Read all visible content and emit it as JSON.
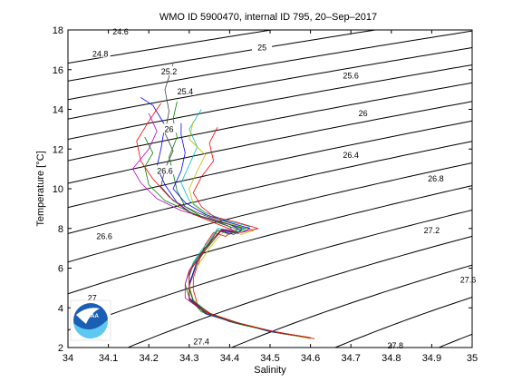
{
  "chart_data": {
    "type": "line",
    "title": "WMO ID 5900470, internal ID 795, 20–Sep–2017",
    "xlabel": "Salinity",
    "ylabel": "Temperature [°C]",
    "xlim": [
      34,
      35
    ],
    "ylim": [
      2,
      18
    ],
    "xticks": [
      "34",
      "34.1",
      "34.2",
      "34.3",
      "34.4",
      "34.5",
      "34.6",
      "34.7",
      "34.8",
      "34.9",
      "35"
    ],
    "yticks": [
      "2",
      "4",
      "6",
      "8",
      "10",
      "12",
      "14",
      "16",
      "18"
    ],
    "grid": false,
    "density_contours": {
      "levels": [
        24.6,
        24.8,
        25,
        25.2,
        25.4,
        25.6,
        25.8,
        26,
        26.2,
        26.4,
        26.6,
        26.8,
        27,
        27.2,
        27.4,
        27.6,
        27.8
      ],
      "labels": [
        {
          "text": "24.6",
          "s": 34.13,
          "t": 17.9
        },
        {
          "text": "24.8",
          "s": 34.08,
          "t": 16.8
        },
        {
          "text": "25",
          "s": 34.48,
          "t": 17.1
        },
        {
          "text": "25.2",
          "s": 34.25,
          "t": 15.9
        },
        {
          "text": "25.4",
          "s": 34.29,
          "t": 14.9
        },
        {
          "text": "25.6",
          "s": 34.7,
          "t": 15.7
        },
        {
          "text": "26",
          "s": 34.73,
          "t": 13.8
        },
        {
          "text": "26",
          "s": 34.25,
          "t": 13.0
        },
        {
          "text": "26.4",
          "s": 34.7,
          "t": 11.7
        },
        {
          "text": "26.6",
          "s": 34.24,
          "t": 10.9
        },
        {
          "text": "26.8",
          "s": 34.91,
          "t": 10.5
        },
        {
          "text": "26.6",
          "s": 34.09,
          "t": 7.6
        },
        {
          "text": "27.2",
          "s": 34.9,
          "t": 7.9
        },
        {
          "text": "27.6",
          "s": 34.99,
          "t": 5.4
        },
        {
          "text": "27",
          "s": 34.06,
          "t": 4.5
        },
        {
          "text": "27.4",
          "s": 34.33,
          "t": 2.3
        },
        {
          "text": "27.8",
          "s": 34.81,
          "t": 2.1
        }
      ]
    },
    "series": [
      {
        "color": "#0000ff",
        "values": [
          [
            34.6,
            2.45
          ],
          [
            34.52,
            2.75
          ],
          [
            34.42,
            3.2
          ],
          [
            34.34,
            3.7
          ],
          [
            34.31,
            4.3
          ],
          [
            34.3,
            5.0
          ],
          [
            34.3,
            5.6
          ],
          [
            34.31,
            6.2
          ],
          [
            34.33,
            6.8
          ],
          [
            34.35,
            7.3
          ],
          [
            34.37,
            7.9
          ],
          [
            34.41,
            7.7
          ],
          [
            34.43,
            7.9
          ],
          [
            34.4,
            8.2
          ],
          [
            34.36,
            8.4
          ],
          [
            34.31,
            8.7
          ],
          [
            34.27,
            9.3
          ],
          [
            34.24,
            10.2
          ],
          [
            34.22,
            11.1
          ],
          [
            34.23,
            12.0
          ],
          [
            34.24,
            13.2
          ],
          [
            34.21,
            14.2
          ],
          [
            34.18,
            14.6
          ]
        ]
      },
      {
        "color": "#008000",
        "values": [
          [
            34.59,
            2.5
          ],
          [
            34.5,
            2.8
          ],
          [
            34.41,
            3.3
          ],
          [
            34.33,
            3.8
          ],
          [
            34.3,
            4.5
          ],
          [
            34.29,
            5.2
          ],
          [
            34.3,
            5.8
          ],
          [
            34.32,
            6.4
          ],
          [
            34.34,
            6.9
          ],
          [
            34.36,
            7.5
          ],
          [
            34.38,
            7.9
          ],
          [
            34.42,
            7.8
          ],
          [
            34.44,
            8.0
          ],
          [
            34.38,
            8.3
          ],
          [
            34.33,
            8.6
          ],
          [
            34.29,
            9.1
          ],
          [
            34.27,
            9.9
          ],
          [
            34.26,
            10.8
          ],
          [
            34.25,
            11.6
          ],
          [
            34.27,
            12.6
          ],
          [
            34.26,
            13.5
          ],
          [
            34.27,
            14.4
          ]
        ]
      },
      {
        "color": "#ff0000",
        "values": [
          [
            34.61,
            2.45
          ],
          [
            34.53,
            2.7
          ],
          [
            34.44,
            3.1
          ],
          [
            34.36,
            3.6
          ],
          [
            34.32,
            4.2
          ],
          [
            34.31,
            4.9
          ],
          [
            34.31,
            5.5
          ],
          [
            34.32,
            6.1
          ],
          [
            34.33,
            6.7
          ],
          [
            34.34,
            7.2
          ],
          [
            34.36,
            7.8
          ],
          [
            34.39,
            7.6
          ],
          [
            34.41,
            7.9
          ],
          [
            34.36,
            8.3
          ],
          [
            34.3,
            8.8
          ],
          [
            34.25,
            9.6
          ],
          [
            34.21,
            10.5
          ],
          [
            34.18,
            11.4
          ],
          [
            34.17,
            12.4
          ],
          [
            34.2,
            13.4
          ],
          [
            34.23,
            14.3
          ]
        ]
      },
      {
        "color": "#00bfbf",
        "values": [
          [
            34.6,
            2.5
          ],
          [
            34.51,
            2.8
          ],
          [
            34.43,
            3.2
          ],
          [
            34.35,
            3.7
          ],
          [
            34.31,
            4.4
          ],
          [
            34.3,
            5.1
          ],
          [
            34.3,
            5.7
          ],
          [
            34.31,
            6.3
          ],
          [
            34.33,
            6.9
          ],
          [
            34.35,
            7.4
          ],
          [
            34.37,
            8.0
          ],
          [
            34.42,
            7.9
          ],
          [
            34.45,
            8.1
          ],
          [
            34.39,
            8.4
          ],
          [
            34.34,
            8.8
          ],
          [
            34.3,
            9.4
          ],
          [
            34.28,
            10.3
          ],
          [
            34.3,
            11.2
          ],
          [
            34.32,
            12.1
          ],
          [
            34.3,
            13.0
          ],
          [
            34.33,
            14.0
          ]
        ]
      },
      {
        "color": "#bf00bf",
        "values": [
          [
            34.59,
            2.5
          ],
          [
            34.5,
            2.85
          ],
          [
            34.4,
            3.3
          ],
          [
            34.33,
            3.9
          ],
          [
            34.29,
            4.5
          ],
          [
            34.29,
            5.2
          ],
          [
            34.3,
            5.9
          ],
          [
            34.32,
            6.5
          ],
          [
            34.34,
            7.0
          ],
          [
            34.36,
            7.6
          ],
          [
            34.37,
            7.9
          ],
          [
            34.41,
            7.8
          ],
          [
            34.4,
            8.1
          ],
          [
            34.35,
            8.5
          ],
          [
            34.28,
            8.9
          ],
          [
            34.22,
            9.5
          ],
          [
            34.18,
            10.3
          ],
          [
            34.16,
            11.0
          ],
          [
            34.2,
            12.0
          ],
          [
            34.22,
            12.9
          ],
          [
            34.2,
            13.8
          ]
        ]
      },
      {
        "color": "#bfbf00",
        "values": [
          [
            34.6,
            2.45
          ],
          [
            34.52,
            2.75
          ],
          [
            34.42,
            3.2
          ],
          [
            34.34,
            3.8
          ],
          [
            34.31,
            4.4
          ],
          [
            34.3,
            5.1
          ],
          [
            34.31,
            5.8
          ],
          [
            34.33,
            6.4
          ],
          [
            34.35,
            7.0
          ],
          [
            34.37,
            7.5
          ],
          [
            34.39,
            7.9
          ],
          [
            34.43,
            7.7
          ],
          [
            34.46,
            7.9
          ],
          [
            34.41,
            8.2
          ],
          [
            34.35,
            8.6
          ],
          [
            34.31,
            9.2
          ],
          [
            34.3,
            10.0
          ],
          [
            34.32,
            10.9
          ],
          [
            34.34,
            11.7
          ],
          [
            34.3,
            12.5
          ],
          [
            34.31,
            13.4
          ]
        ]
      },
      {
        "color": "#404040",
        "values": [
          [
            34.6,
            2.5
          ],
          [
            34.51,
            2.8
          ],
          [
            34.41,
            3.25
          ],
          [
            34.34,
            3.75
          ],
          [
            34.3,
            4.4
          ],
          [
            34.3,
            5.1
          ],
          [
            34.31,
            5.7
          ],
          [
            34.32,
            6.3
          ],
          [
            34.34,
            6.9
          ],
          [
            34.36,
            7.4
          ],
          [
            34.38,
            7.9
          ],
          [
            34.42,
            7.75
          ],
          [
            34.43,
            8.0
          ],
          [
            34.37,
            8.4
          ],
          [
            34.32,
            8.8
          ],
          [
            34.26,
            9.4
          ],
          [
            34.23,
            10.1
          ],
          [
            34.24,
            11.0
          ],
          [
            34.26,
            11.9
          ],
          [
            34.24,
            12.8
          ],
          [
            34.25,
            13.9
          ],
          [
            34.24,
            15.0
          ],
          [
            34.26,
            16.3
          ]
        ]
      },
      {
        "color": "#0000ff",
        "values": [
          [
            34.6,
            2.5
          ],
          [
            34.5,
            2.8
          ],
          [
            34.41,
            3.3
          ],
          [
            34.34,
            3.8
          ],
          [
            34.3,
            4.5
          ],
          [
            34.3,
            5.2
          ],
          [
            34.31,
            5.8
          ],
          [
            34.32,
            6.4
          ],
          [
            34.34,
            7.0
          ],
          [
            34.36,
            7.5
          ],
          [
            34.38,
            7.9
          ],
          [
            34.43,
            7.8
          ],
          [
            34.45,
            8.0
          ],
          [
            34.4,
            8.3
          ],
          [
            34.34,
            8.7
          ],
          [
            34.29,
            9.3
          ],
          [
            34.26,
            10.0
          ],
          [
            34.28,
            10.9
          ],
          [
            34.29,
            11.8
          ],
          [
            34.28,
            12.7
          ],
          [
            34.28,
            13.3
          ]
        ]
      },
      {
        "color": "#008000",
        "values": [
          [
            34.6,
            2.5
          ],
          [
            34.52,
            2.75
          ],
          [
            34.43,
            3.15
          ],
          [
            34.35,
            3.7
          ],
          [
            34.31,
            4.35
          ],
          [
            34.3,
            5.0
          ],
          [
            34.3,
            5.6
          ],
          [
            34.31,
            6.2
          ],
          [
            34.33,
            6.8
          ],
          [
            34.35,
            7.3
          ],
          [
            34.37,
            7.9
          ],
          [
            34.4,
            7.7
          ],
          [
            34.42,
            7.95
          ],
          [
            34.37,
            8.3
          ],
          [
            34.31,
            8.75
          ],
          [
            34.24,
            9.4
          ],
          [
            34.2,
            10.2
          ],
          [
            34.19,
            11.1
          ],
          [
            34.21,
            11.8
          ],
          [
            34.19,
            12.6
          ]
        ]
      },
      {
        "color": "#ff0000",
        "values": [
          [
            34.6,
            2.5
          ],
          [
            34.51,
            2.8
          ],
          [
            34.42,
            3.25
          ],
          [
            34.34,
            3.8
          ],
          [
            34.3,
            4.45
          ],
          [
            34.3,
            5.15
          ],
          [
            34.3,
            5.8
          ],
          [
            34.32,
            6.4
          ],
          [
            34.34,
            7.0
          ],
          [
            34.36,
            7.5
          ],
          [
            34.38,
            7.95
          ],
          [
            34.43,
            7.8
          ],
          [
            34.47,
            8.0
          ],
          [
            34.42,
            8.3
          ],
          [
            34.36,
            8.6
          ],
          [
            34.33,
            9.1
          ],
          [
            34.31,
            9.8
          ],
          [
            34.33,
            10.6
          ],
          [
            34.36,
            11.4
          ],
          [
            34.35,
            12.3
          ],
          [
            34.37,
            13.1
          ]
        ]
      }
    ]
  }
}
